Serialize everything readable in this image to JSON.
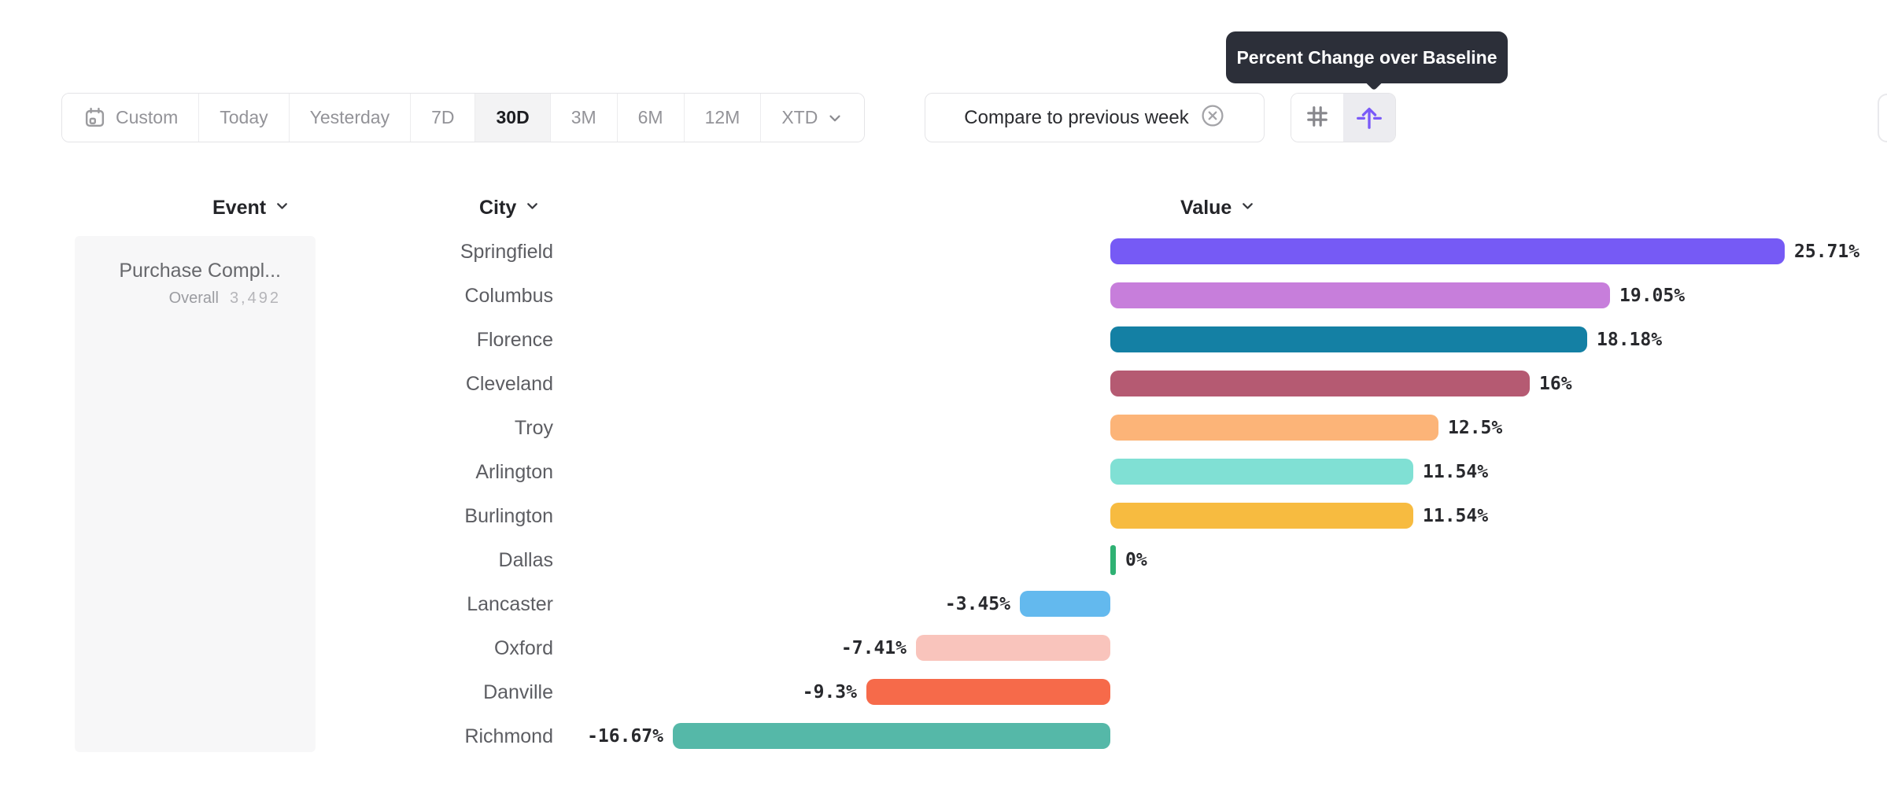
{
  "tooltip": {
    "text": "Percent Change over Baseline"
  },
  "toolbar": {
    "date_ranges": [
      {
        "label": "Custom",
        "icon": "calendar-icon",
        "selected": false
      },
      {
        "label": "Today",
        "selected": false
      },
      {
        "label": "Yesterday",
        "selected": false
      },
      {
        "label": "7D",
        "selected": false
      },
      {
        "label": "30D",
        "selected": true
      },
      {
        "label": "3M",
        "selected": false
      },
      {
        "label": "6M",
        "selected": false
      },
      {
        "label": "12M",
        "selected": false
      },
      {
        "label": "XTD",
        "chevron": true,
        "selected": false
      }
    ],
    "compare": {
      "label": "Compare to previous week",
      "icon": "close-circle-icon"
    },
    "view_toggles": [
      {
        "icon": "hash-icon",
        "selected": false
      },
      {
        "icon": "percent-baseline-icon",
        "selected": true
      }
    ]
  },
  "columns": {
    "event": "Event",
    "city": "City",
    "value": "Value"
  },
  "event_panel": {
    "title": "Purchase Compl...",
    "metric_label": "Overall",
    "metric_value": "3,492"
  },
  "chart_data": {
    "type": "bar",
    "orientation": "horizontal",
    "title": "Percent Change over Baseline",
    "unit": "%",
    "baseline": 0,
    "xlim": [
      -16.67,
      25.71
    ],
    "categories": [
      "Springfield",
      "Columbus",
      "Florence",
      "Cleveland",
      "Troy",
      "Arlington",
      "Burlington",
      "Dallas",
      "Lancaster",
      "Oxford",
      "Danville",
      "Richmond"
    ],
    "values": [
      25.71,
      19.05,
      18.18,
      16,
      12.5,
      11.54,
      11.54,
      0,
      -3.45,
      -7.41,
      -9.3,
      -16.67
    ],
    "value_labels": [
      "25.71%",
      "19.05%",
      "18.18%",
      "16%",
      "12.5%",
      "11.54%",
      "11.54%",
      "0%",
      "-3.45%",
      "-7.41%",
      "-9.3%",
      "-16.67%"
    ],
    "bar_colors": [
      "#765af5",
      "#c77edb",
      "#1480a4",
      "#b55a72",
      "#fcb478",
      "#80e0d4",
      "#f7bb40",
      "#2fb173",
      "#63b9ee",
      "#f9c4bc",
      "#f66a4a",
      "#55b8a8"
    ]
  },
  "colors": {
    "accent_purple": "#765af5",
    "tooltip_bg": "#2c2f39",
    "selected_bg": "#f3f3f4",
    "border": "#e4e4e7",
    "muted_text": "#939398",
    "panel_bg": "#f7f7f8",
    "green_tick": "#2fb173"
  }
}
